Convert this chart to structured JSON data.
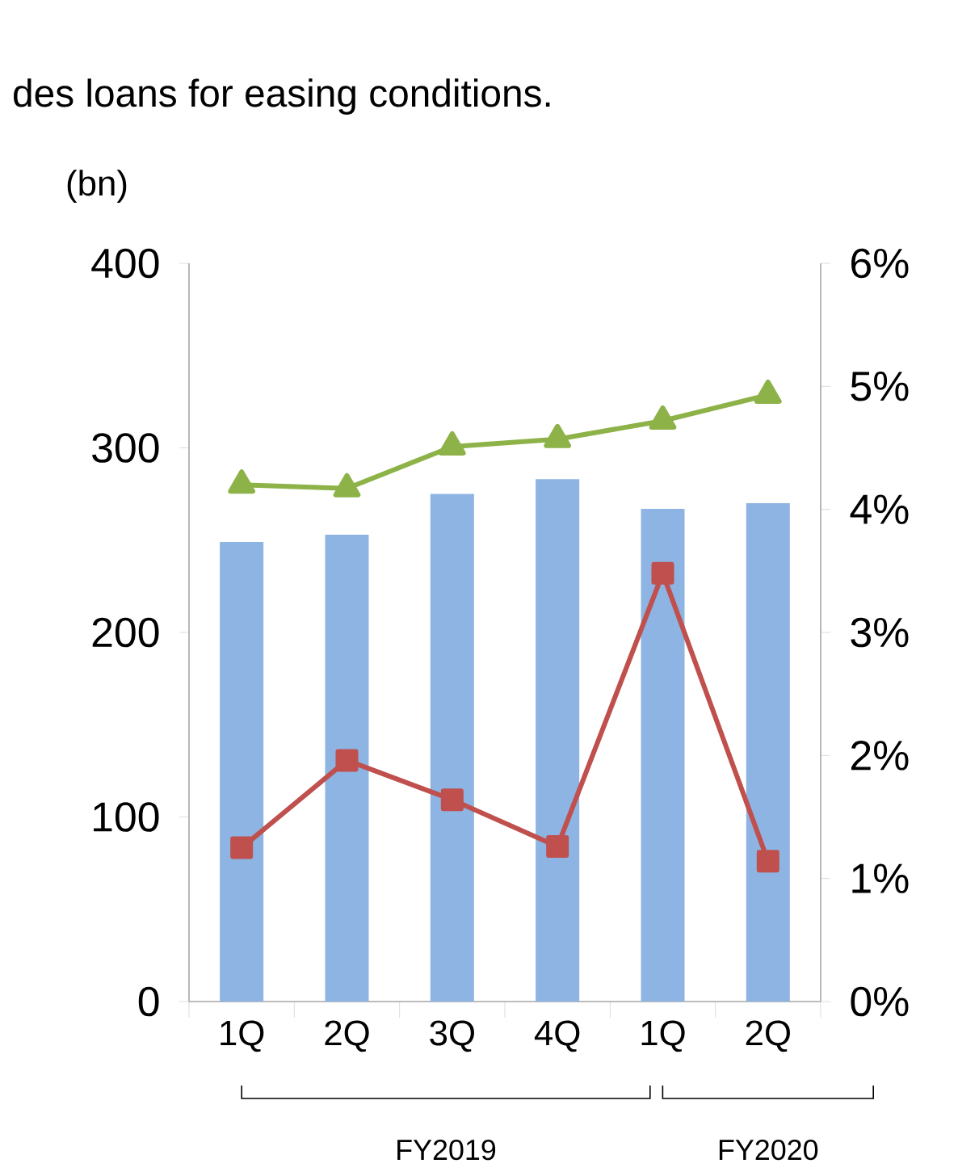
{
  "chart_data": {
    "type": "bar",
    "title": "des loans for easing conditions.",
    "ylabel": "(bn)",
    "categories": [
      "1Q",
      "2Q",
      "3Q",
      "4Q",
      "1Q",
      "2Q"
    ],
    "series": [
      {
        "color": "#8db4e2",
        "values": [
          249,
          253,
          275,
          283,
          267,
          270
        ]
      },
      {
        "type": "line",
        "axis": "y2",
        "color": "#c0504d",
        "marker": "square",
        "values": [
          1.25,
          1.96,
          1.64,
          1.26,
          3.48,
          1.14
        ]
      },
      {
        "type": "line",
        "axis": "y2",
        "color": "#8db248",
        "marker": "triangle",
        "values": [
          4.2,
          4.17,
          4.51,
          4.57,
          4.72,
          4.93
        ]
      }
    ],
    "ylim": [
      0,
      400
    ],
    "yticks": [
      0,
      100,
      200,
      300,
      400
    ],
    "y2lim": [
      0,
      6
    ],
    "y2ticks": [
      {
        "value": 0,
        "label": "0%"
      },
      {
        "value": 1,
        "label": "1%"
      },
      {
        "value": 2,
        "label": "2%"
      },
      {
        "value": 3,
        "label": "3%"
      },
      {
        "value": 4,
        "label": "4%"
      },
      {
        "value": 5,
        "label": "5%"
      },
      {
        "value": 6,
        "label": "6%"
      }
    ],
    "annotations": [
      "FY2019",
      "FY2020"
    ],
    "grid": false
  }
}
